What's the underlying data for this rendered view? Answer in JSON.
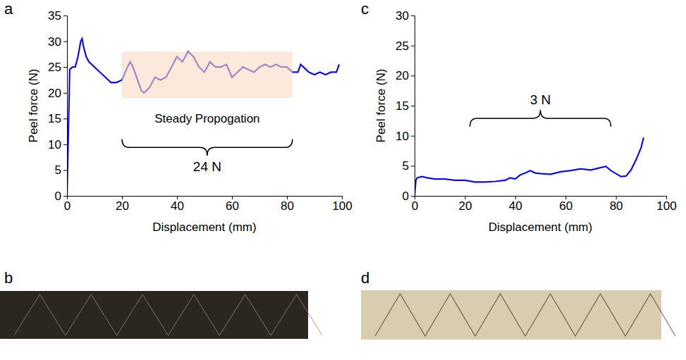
{
  "chart_data": [
    {
      "panel": "a",
      "type": "line",
      "color": "#1010c8",
      "x_label": "Displacement (mm)",
      "y_label": "Peel force (N)",
      "xlim": [
        0,
        100
      ],
      "xticks": [
        0,
        20,
        40,
        60,
        80,
        100
      ],
      "ylim": [
        0,
        35
      ],
      "yticks": [
        0,
        5,
        10,
        15,
        20,
        25,
        30,
        35
      ],
      "x": [
        0,
        1,
        2,
        3,
        4,
        5,
        5.5,
        6,
        7,
        8,
        10,
        12,
        14,
        16,
        18,
        20,
        22,
        23,
        24,
        26,
        27,
        28,
        30,
        32,
        34,
        36,
        38,
        40,
        42,
        44,
        46,
        48,
        50,
        52,
        54,
        56,
        58,
        60,
        62,
        64,
        66,
        68,
        70,
        72,
        74,
        76,
        78,
        80,
        82,
        84,
        85,
        86,
        88,
        90,
        92,
        94,
        96,
        98,
        99
      ],
      "values": [
        0,
        24.5,
        25,
        25,
        27,
        30,
        30.5,
        29,
        27,
        26,
        25,
        24,
        23,
        22,
        22,
        22.5,
        25,
        26,
        25,
        22,
        20.5,
        20,
        21,
        23,
        22.5,
        23,
        25,
        27,
        26,
        28,
        27,
        25,
        24,
        26,
        25,
        25,
        25.5,
        23,
        24,
        25,
        24.5,
        24,
        25,
        25.5,
        25,
        25.5,
        25,
        25,
        24,
        24,
        25.5,
        25,
        24,
        23.5,
        24,
        23.5,
        24,
        24,
        25.5
      ],
      "region": {
        "x": [
          20,
          82
        ],
        "y": [
          19,
          28
        ],
        "label": "Steady Propogation"
      },
      "bracket": {
        "x": [
          20,
          82
        ],
        "y": [
          11,
          7.8
        ],
        "label": "24 N"
      }
    },
    {
      "panel": "c",
      "type": "line",
      "color": "#1010c8",
      "x_label": "Displacement (mm)",
      "y_label": "Peel force (N)",
      "xlim": [
        0,
        100
      ],
      "xticks": [
        0,
        20,
        40,
        60,
        80,
        100
      ],
      "ylim": [
        0,
        30
      ],
      "yticks": [
        0,
        5,
        10,
        15,
        20,
        25,
        30
      ],
      "x": [
        0,
        0.5,
        1,
        3,
        5,
        8,
        12,
        16,
        20,
        24,
        28,
        32,
        36,
        38,
        40,
        42,
        44,
        46,
        48,
        50,
        54,
        58,
        62,
        66,
        70,
        72,
        74,
        76,
        78,
        80,
        82,
        84,
        86,
        88,
        90,
        91
      ],
      "values": [
        0,
        2.5,
        3,
        3.2,
        3,
        2.8,
        2.8,
        2.6,
        2.6,
        2.3,
        2.3,
        2.4,
        2.6,
        3,
        2.8,
        3.5,
        3.8,
        4.2,
        3.8,
        3.7,
        3.6,
        4,
        4.2,
        4.5,
        4.3,
        4.5,
        4.7,
        4.9,
        4.2,
        3.7,
        3.2,
        3.3,
        4.3,
        6,
        8,
        9.7
      ],
      "bracket": {
        "x": [
          22,
          78
        ],
        "y": [
          11.5,
          14.3
        ],
        "label": "3 N"
      }
    }
  ],
  "images": [
    {
      "panel": "b"
    },
    {
      "panel": "d"
    }
  ]
}
